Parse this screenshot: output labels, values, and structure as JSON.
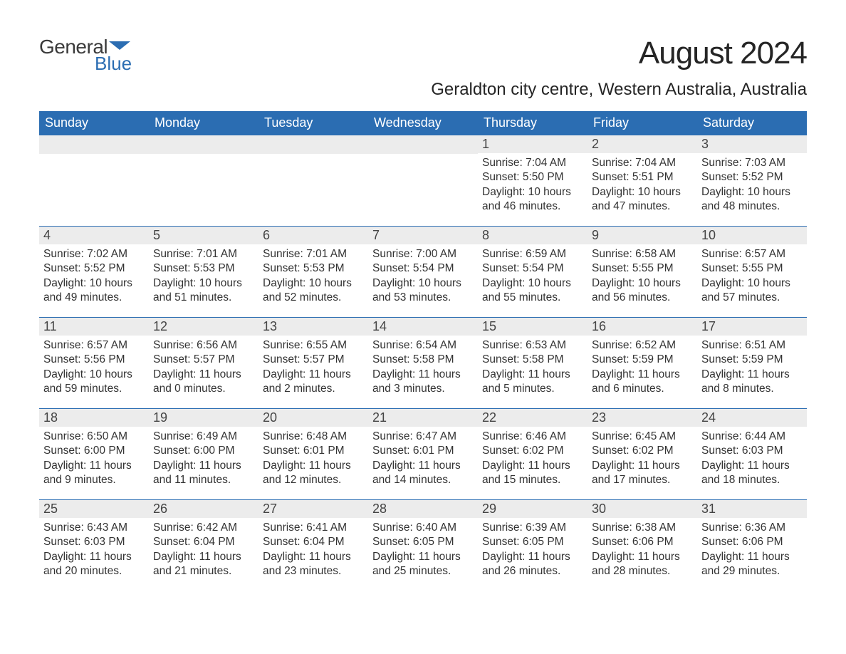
{
  "logo": {
    "word1": "General",
    "word2": "Blue",
    "text_color": "#3a3a3a",
    "accent_color": "#2b6db2"
  },
  "title": "August 2024",
  "subtitle": "Geraldton city centre, Western Australia, Australia",
  "styles": {
    "header_bg": "#2b6db2",
    "header_text": "#ffffff",
    "daynum_bg": "#ececec",
    "daynum_border": "#2b6db2",
    "body_text": "#333333",
    "title_fontsize": 44,
    "subtitle_fontsize": 24,
    "dayhead_fontsize": 18,
    "body_fontsize": 15.5
  },
  "day_headers": [
    "Sunday",
    "Monday",
    "Tuesday",
    "Wednesday",
    "Thursday",
    "Friday",
    "Saturday"
  ],
  "labels": {
    "sunrise": "Sunrise:",
    "sunset": "Sunset:",
    "daylight": "Daylight:"
  },
  "weeks": [
    [
      null,
      null,
      null,
      null,
      {
        "n": "1",
        "sunrise": "7:04 AM",
        "sunset": "5:50 PM",
        "daylight": "10 hours and 46 minutes."
      },
      {
        "n": "2",
        "sunrise": "7:04 AM",
        "sunset": "5:51 PM",
        "daylight": "10 hours and 47 minutes."
      },
      {
        "n": "3",
        "sunrise": "7:03 AM",
        "sunset": "5:52 PM",
        "daylight": "10 hours and 48 minutes."
      }
    ],
    [
      {
        "n": "4",
        "sunrise": "7:02 AM",
        "sunset": "5:52 PM",
        "daylight": "10 hours and 49 minutes."
      },
      {
        "n": "5",
        "sunrise": "7:01 AM",
        "sunset": "5:53 PM",
        "daylight": "10 hours and 51 minutes."
      },
      {
        "n": "6",
        "sunrise": "7:01 AM",
        "sunset": "5:53 PM",
        "daylight": "10 hours and 52 minutes."
      },
      {
        "n": "7",
        "sunrise": "7:00 AM",
        "sunset": "5:54 PM",
        "daylight": "10 hours and 53 minutes."
      },
      {
        "n": "8",
        "sunrise": "6:59 AM",
        "sunset": "5:54 PM",
        "daylight": "10 hours and 55 minutes."
      },
      {
        "n": "9",
        "sunrise": "6:58 AM",
        "sunset": "5:55 PM",
        "daylight": "10 hours and 56 minutes."
      },
      {
        "n": "10",
        "sunrise": "6:57 AM",
        "sunset": "5:55 PM",
        "daylight": "10 hours and 57 minutes."
      }
    ],
    [
      {
        "n": "11",
        "sunrise": "6:57 AM",
        "sunset": "5:56 PM",
        "daylight": "10 hours and 59 minutes."
      },
      {
        "n": "12",
        "sunrise": "6:56 AM",
        "sunset": "5:57 PM",
        "daylight": "11 hours and 0 minutes."
      },
      {
        "n": "13",
        "sunrise": "6:55 AM",
        "sunset": "5:57 PM",
        "daylight": "11 hours and 2 minutes."
      },
      {
        "n": "14",
        "sunrise": "6:54 AM",
        "sunset": "5:58 PM",
        "daylight": "11 hours and 3 minutes."
      },
      {
        "n": "15",
        "sunrise": "6:53 AM",
        "sunset": "5:58 PM",
        "daylight": "11 hours and 5 minutes."
      },
      {
        "n": "16",
        "sunrise": "6:52 AM",
        "sunset": "5:59 PM",
        "daylight": "11 hours and 6 minutes."
      },
      {
        "n": "17",
        "sunrise": "6:51 AM",
        "sunset": "5:59 PM",
        "daylight": "11 hours and 8 minutes."
      }
    ],
    [
      {
        "n": "18",
        "sunrise": "6:50 AM",
        "sunset": "6:00 PM",
        "daylight": "11 hours and 9 minutes."
      },
      {
        "n": "19",
        "sunrise": "6:49 AM",
        "sunset": "6:00 PM",
        "daylight": "11 hours and 11 minutes."
      },
      {
        "n": "20",
        "sunrise": "6:48 AM",
        "sunset": "6:01 PM",
        "daylight": "11 hours and 12 minutes."
      },
      {
        "n": "21",
        "sunrise": "6:47 AM",
        "sunset": "6:01 PM",
        "daylight": "11 hours and 14 minutes."
      },
      {
        "n": "22",
        "sunrise": "6:46 AM",
        "sunset": "6:02 PM",
        "daylight": "11 hours and 15 minutes."
      },
      {
        "n": "23",
        "sunrise": "6:45 AM",
        "sunset": "6:02 PM",
        "daylight": "11 hours and 17 minutes."
      },
      {
        "n": "24",
        "sunrise": "6:44 AM",
        "sunset": "6:03 PM",
        "daylight": "11 hours and 18 minutes."
      }
    ],
    [
      {
        "n": "25",
        "sunrise": "6:43 AM",
        "sunset": "6:03 PM",
        "daylight": "11 hours and 20 minutes."
      },
      {
        "n": "26",
        "sunrise": "6:42 AM",
        "sunset": "6:04 PM",
        "daylight": "11 hours and 21 minutes."
      },
      {
        "n": "27",
        "sunrise": "6:41 AM",
        "sunset": "6:04 PM",
        "daylight": "11 hours and 23 minutes."
      },
      {
        "n": "28",
        "sunrise": "6:40 AM",
        "sunset": "6:05 PM",
        "daylight": "11 hours and 25 minutes."
      },
      {
        "n": "29",
        "sunrise": "6:39 AM",
        "sunset": "6:05 PM",
        "daylight": "11 hours and 26 minutes."
      },
      {
        "n": "30",
        "sunrise": "6:38 AM",
        "sunset": "6:06 PM",
        "daylight": "11 hours and 28 minutes."
      },
      {
        "n": "31",
        "sunrise": "6:36 AM",
        "sunset": "6:06 PM",
        "daylight": "11 hours and 29 minutes."
      }
    ]
  ]
}
